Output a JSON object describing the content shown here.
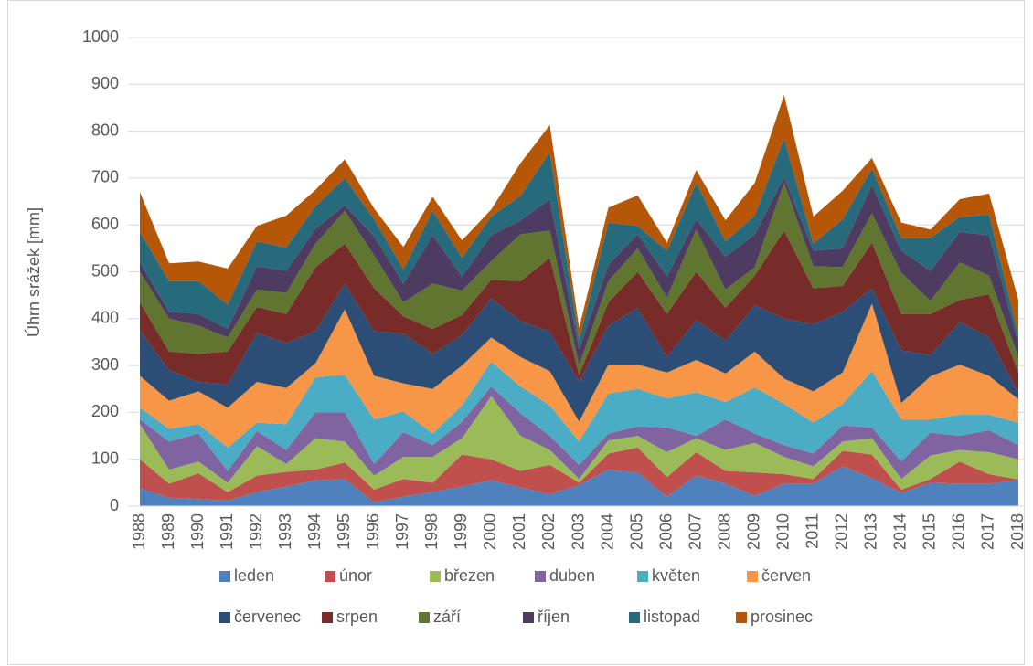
{
  "chart_data": {
    "type": "stacked_area",
    "y_label": "Úhrn srážek [mm]",
    "x": [
      1988,
      1989,
      1990,
      1991,
      1992,
      1993,
      1994,
      1995,
      1996,
      1997,
      1998,
      1999,
      2000,
      2001,
      2002,
      2003,
      2004,
      2005,
      2006,
      2007,
      2008,
      2009,
      2010,
      2011,
      2012,
      2013,
      2014,
      2015,
      2016,
      2017,
      2018
    ],
    "ylim": [
      0,
      1000
    ],
    "yticks": [
      0,
      100,
      200,
      300,
      400,
      500,
      600,
      700,
      800,
      900,
      1000
    ],
    "grid": true,
    "legend": "bottom",
    "series": [
      {
        "name": "leden",
        "color": "#4f81bd",
        "values": [
          38,
          18,
          15,
          12,
          30,
          42,
          55,
          58,
          8,
          20,
          30,
          42,
          55,
          40,
          25,
          45,
          78,
          72,
          20,
          65,
          48,
          22,
          48,
          48,
          85,
          60,
          28,
          50,
          48,
          48,
          55
        ]
      },
      {
        "name": "únor",
        "color": "#c0504d",
        "values": [
          62,
          30,
          55,
          18,
          35,
          31,
          23,
          35,
          27,
          38,
          20,
          68,
          45,
          35,
          63,
          5,
          34,
          53,
          42,
          50,
          27,
          50,
          20,
          10,
          33,
          50,
          7,
          8,
          47,
          20,
          2
        ]
      },
      {
        "name": "březen",
        "color": "#9bbb59",
        "values": [
          75,
          30,
          25,
          20,
          63,
          17,
          67,
          45,
          30,
          47,
          55,
          35,
          135,
          75,
          32,
          8,
          28,
          25,
          53,
          30,
          45,
          63,
          37,
          27,
          20,
          35,
          23,
          50,
          25,
          47,
          43
        ]
      },
      {
        "name": "duben",
        "color": "#8064a2",
        "values": [
          10,
          60,
          60,
          25,
          32,
          30,
          55,
          62,
          25,
          53,
          25,
          35,
          20,
          48,
          30,
          30,
          15,
          20,
          53,
          5,
          65,
          20,
          25,
          27,
          34,
          23,
          37,
          49,
          30,
          47,
          30
        ]
      },
      {
        "name": "květen",
        "color": "#4bacc6",
        "values": [
          25,
          27,
          20,
          50,
          18,
          55,
          75,
          80,
          95,
          44,
          25,
          35,
          53,
          57,
          65,
          50,
          85,
          80,
          62,
          93,
          37,
          98,
          88,
          66,
          46,
          120,
          90,
          28,
          45,
          33,
          48
        ]
      },
      {
        "name": "červen",
        "color": "#f79646",
        "values": [
          68,
          60,
          70,
          85,
          87,
          77,
          30,
          140,
          93,
          60,
          95,
          85,
          52,
          63,
          73,
          42,
          62,
          52,
          55,
          69,
          61,
          77,
          54,
          67,
          67,
          144,
          35,
          92,
          107,
          83,
          50
        ]
      },
      {
        "name": "červenec",
        "color": "#2c4d75",
        "values": [
          97,
          65,
          20,
          50,
          105,
          96,
          68,
          55,
          95,
          106,
          75,
          65,
          83,
          77,
          84,
          85,
          83,
          121,
          33,
          85,
          70,
          98,
          128,
          143,
          130,
          33,
          112,
          45,
          91,
          82,
          14
        ]
      },
      {
        "name": "srpen",
        "color": "#772c2a",
        "values": [
          60,
          40,
          60,
          70,
          55,
          62,
          137,
          85,
          92,
          37,
          53,
          43,
          40,
          85,
          158,
          15,
          50,
          77,
          92,
          103,
          70,
          64,
          188,
          77,
          55,
          97,
          78,
          88,
          47,
          92,
          43
        ]
      },
      {
        "name": "září",
        "color": "#5f7530",
        "values": [
          65,
          70,
          60,
          30,
          37,
          45,
          50,
          70,
          70,
          30,
          97,
          52,
          40,
          100,
          58,
          20,
          45,
          50,
          35,
          90,
          39,
          18,
          102,
          47,
          40,
          63,
          88,
          28,
          80,
          40,
          33
        ]
      },
      {
        "name": "říjen",
        "color": "#4d3b62",
        "values": [
          20,
          15,
          25,
          18,
          50,
          47,
          32,
          12,
          40,
          40,
          103,
          30,
          55,
          30,
          67,
          35,
          35,
          30,
          45,
          22,
          70,
          70,
          12,
          33,
          40,
          60,
          47,
          64,
          65,
          86,
          30
        ]
      },
      {
        "name": "listopad",
        "color": "#276a7c",
        "values": [
          65,
          65,
          70,
          52,
          53,
          50,
          48,
          58,
          37,
          30,
          52,
          40,
          40,
          52,
          100,
          20,
          90,
          18,
          55,
          78,
          33,
          40,
          83,
          15,
          62,
          35,
          27,
          70,
          32,
          44,
          17
        ]
      },
      {
        "name": "prosinec",
        "color": "#b65708",
        "values": [
          85,
          38,
          42,
          77,
          33,
          68,
          35,
          40,
          23,
          48,
          30,
          37,
          15,
          70,
          58,
          25,
          32,
          65,
          17,
          27,
          45,
          70,
          92,
          58,
          61,
          23,
          33,
          18,
          38,
          45,
          75
        ]
      }
    ]
  }
}
